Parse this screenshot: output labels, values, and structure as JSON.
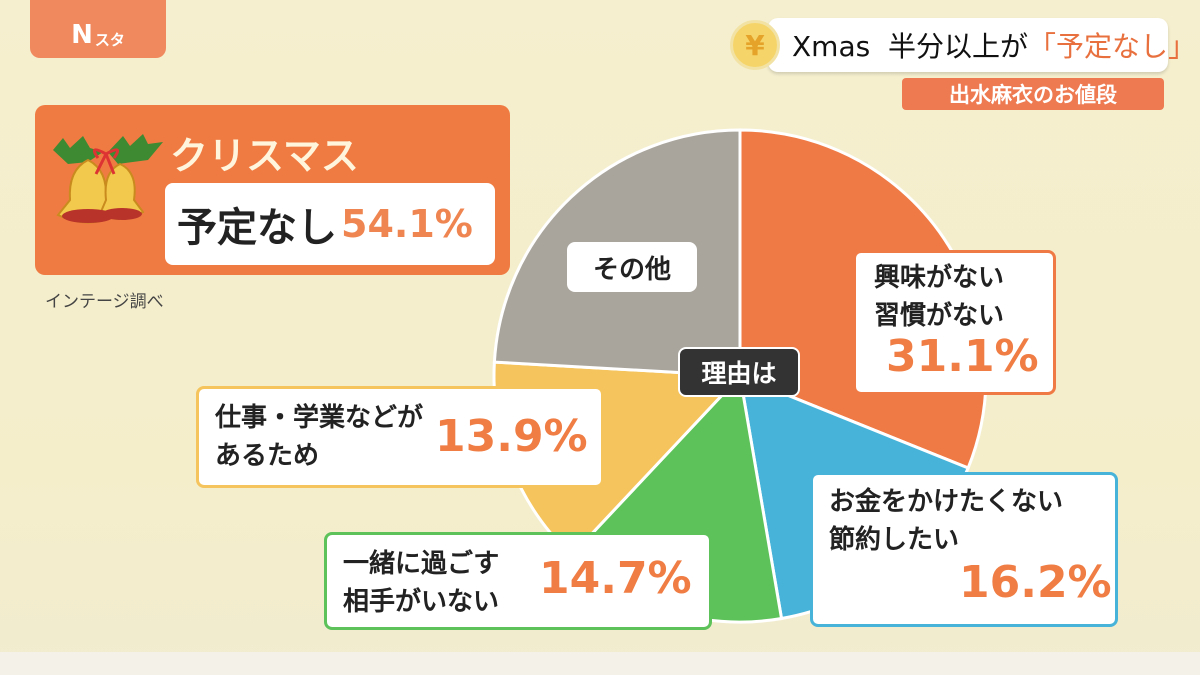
{
  "logo": {
    "main": "N",
    "sub": "スタ"
  },
  "headline": {
    "icon": "yen-coin-icon",
    "prefix": "Xmas  半分以上が",
    "highlight": "「予定なし」"
  },
  "subtitle": "出水麻衣のお値段",
  "summary": {
    "title": "クリスマス",
    "label": "予定なし",
    "value": "54.1%"
  },
  "source": "インテージ調べ",
  "chart_data": {
    "type": "pie",
    "title": "",
    "center_label": "理由は",
    "start": "top, clockwise",
    "slices": [
      {
        "label": "興味がない\n習慣がない",
        "line1": "興味がない",
        "line2": "習慣がない",
        "value": 31.1,
        "display": "31.1%",
        "color": "#f07a45"
      },
      {
        "label": "お金をかけたくない\n節約したい",
        "line1": "お金をかけたくない",
        "line2": "節約したい",
        "value": 16.2,
        "display": "16.2%",
        "color": "#47b3d8"
      },
      {
        "label": "一緒に過ごす\n相手がいない",
        "line1": "一緒に過ごす",
        "line2": "相手がいない",
        "value": 14.7,
        "display": "14.7%",
        "color": "#5dc25a"
      },
      {
        "label": "仕事・学業などが\nあるため",
        "line1": "仕事・学業などが",
        "line2": "あるため",
        "value": 13.9,
        "display": "13.9%",
        "color": "#f5c45c"
      },
      {
        "label": "その他",
        "value": 24.1,
        "color": "#a9a59d"
      }
    ]
  }
}
